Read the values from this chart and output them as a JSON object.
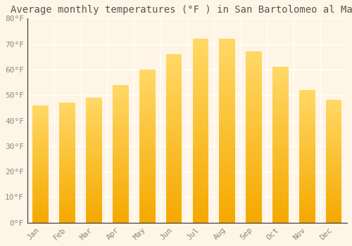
{
  "title": "Average monthly temperatures (°F ) in San Bartolomeo al Mare",
  "months": [
    "Jan",
    "Feb",
    "Mar",
    "Apr",
    "May",
    "Jun",
    "Jul",
    "Aug",
    "Sep",
    "Oct",
    "Nov",
    "Dec"
  ],
  "values": [
    46,
    47,
    49,
    54,
    60,
    66,
    72,
    72,
    67,
    61,
    52,
    48
  ],
  "ylim": [
    0,
    80
  ],
  "yticks": [
    0,
    10,
    20,
    30,
    40,
    50,
    60,
    70,
    80
  ],
  "ytick_labels": [
    "0°F",
    "10°F",
    "20°F",
    "30°F",
    "40°F",
    "50°F",
    "60°F",
    "70°F",
    "80°F"
  ],
  "background_color": "#FFF5E6",
  "grid_color": "#FFFFFF",
  "title_fontsize": 10,
  "tick_fontsize": 8,
  "tick_color": "#888888",
  "bar_color_bottom": "#F5A800",
  "bar_color_top": "#FFD966",
  "bar_width": 0.6,
  "spine_color": "#333333"
}
